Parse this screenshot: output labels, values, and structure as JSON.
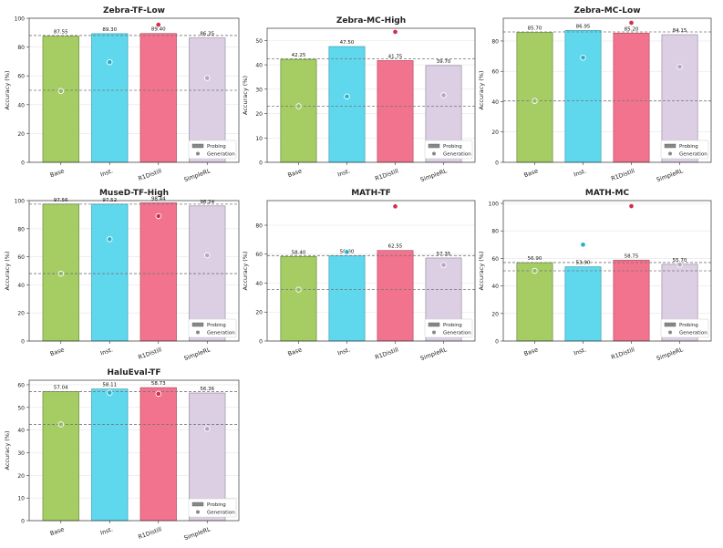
{
  "chart_data": [
    {
      "type": "bar",
      "title": "Zebra-TF-Low",
      "ylabel": "Accuracy (%)",
      "categories": [
        "Base",
        "Inst.",
        "R1Distill",
        "SimpleRL"
      ],
      "ylim": [
        0,
        100
      ],
      "yticks": [
        0,
        20,
        40,
        60,
        80,
        100
      ],
      "series": [
        {
          "name": "Probing",
          "values": [
            87.55,
            89.3,
            89.4,
            86.35
          ]
        },
        {
          "name": "Generation",
          "values": [
            49.5,
            69.5,
            95.5,
            58.5
          ]
        }
      ],
      "bar_labels": [
        "87.55",
        "89.30",
        "89.40",
        "86.35"
      ],
      "hlines": [
        88,
        50
      ],
      "legend": "lower-right"
    },
    {
      "type": "bar",
      "title": "Zebra-MC-High",
      "ylabel": "Accuracy (%)",
      "categories": [
        "Base",
        "Inst.",
        "R1Distill",
        "SimpleRL"
      ],
      "ylim": [
        0,
        55
      ],
      "yticks": [
        0,
        10,
        20,
        30,
        40,
        50
      ],
      "series": [
        {
          "name": "Probing",
          "values": [
            42.25,
            47.5,
            41.75,
            39.7
          ]
        },
        {
          "name": "Generation",
          "values": [
            23,
            27,
            53.5,
            27.5
          ]
        }
      ],
      "bar_labels": [
        "42.25",
        "47.50",
        "41.75",
        "39.70"
      ],
      "hlines": [
        42.5,
        23
      ],
      "legend": "lower-right"
    },
    {
      "type": "bar",
      "title": "Zebra-MC-Low",
      "ylabel": "Accuracy (%)",
      "categories": [
        "Base",
        "Inst.",
        "R1Distill",
        "SimpleRL"
      ],
      "ylim": [
        0,
        95
      ],
      "yticks": [
        0,
        20,
        40,
        60,
        80
      ],
      "series": [
        {
          "name": "Probing",
          "values": [
            85.7,
            86.95,
            85.2,
            84.15
          ]
        },
        {
          "name": "Generation",
          "values": [
            40.5,
            69,
            92,
            63
          ]
        }
      ],
      "bar_labels": [
        "85.70",
        "86.95",
        "85.20",
        "84.15"
      ],
      "hlines": [
        86,
        40.5
      ],
      "legend": "lower-right"
    },
    {
      "type": "bar",
      "title": "MuseD-TF-High",
      "ylabel": "Accuracy (%)",
      "categories": [
        "Base",
        "Inst.",
        "R1Distill",
        "SimpleRL"
      ],
      "ylim": [
        0,
        100
      ],
      "yticks": [
        0,
        20,
        40,
        60,
        80,
        100
      ],
      "series": [
        {
          "name": "Probing",
          "values": [
            97.56,
            97.52,
            98.44,
            96.24
          ]
        },
        {
          "name": "Generation",
          "values": [
            48,
            72.5,
            89,
            61
          ]
        }
      ],
      "bar_labels": [
        "97.56",
        "97.52",
        "98.44",
        "96.24"
      ],
      "hlines": [
        97.5,
        48
      ],
      "legend": "lower-right"
    },
    {
      "type": "bar",
      "title": "MATH-TF",
      "ylabel": "Accuracy (%)",
      "categories": [
        "Base",
        "Inst.",
        "R1Distill",
        "SimpleRL"
      ],
      "ylim": [
        0,
        97
      ],
      "yticks": [
        0,
        20,
        40,
        60,
        80
      ],
      "series": [
        {
          "name": "Probing",
          "values": [
            58.4,
            58.8,
            62.55,
            57.35
          ]
        },
        {
          "name": "Generation",
          "values": [
            35.5,
            61.5,
            93,
            52.5
          ]
        }
      ],
      "bar_labels": [
        "58.40",
        "58.80",
        "62.55",
        "57.35"
      ],
      "hlines": [
        59,
        35.5
      ],
      "legend": "lower-right"
    },
    {
      "type": "bar",
      "title": "MATH-MC",
      "ylabel": "Accuracy (%)",
      "categories": [
        "Base",
        "Inst.",
        "R1Distill",
        "SimpleRL"
      ],
      "ylim": [
        0,
        102
      ],
      "yticks": [
        0,
        20,
        40,
        60,
        80,
        100
      ],
      "series": [
        {
          "name": "Probing",
          "values": [
            56.9,
            53.9,
            58.75,
            55.7
          ]
        },
        {
          "name": "Generation",
          "values": [
            51,
            70,
            98,
            55.5
          ]
        }
      ],
      "bar_labels": [
        "56.90",
        "53.90",
        "58.75",
        "55.70"
      ],
      "hlines": [
        57,
        51
      ],
      "legend": "lower-right"
    },
    {
      "type": "bar",
      "title": "HaluEval-TF",
      "ylabel": "Accuracy (%)",
      "categories": [
        "Base",
        "Inst.",
        "R1Distill",
        "SimpleRL"
      ],
      "ylim": [
        0,
        62
      ],
      "yticks": [
        0,
        10,
        20,
        30,
        40,
        50,
        60
      ],
      "series": [
        {
          "name": "Probing",
          "values": [
            57.04,
            58.11,
            58.73,
            56.36
          ]
        },
        {
          "name": "Generation",
          "values": [
            42.5,
            56.5,
            56,
            40.5
          ]
        }
      ],
      "bar_labels": [
        "57.04",
        "58.11",
        "58.73",
        "56.36"
      ],
      "hlines": [
        57,
        42.5
      ],
      "legend": "lower-right"
    }
  ],
  "colors": {
    "bars": [
      "#a5cd63",
      "#5fd8ee",
      "#f2738d",
      "#dccfe3"
    ],
    "bar_edges": [
      "#6a8a3a",
      "#3a9fb5",
      "#b84f65",
      "#9d90a6"
    ],
    "dots": [
      "#98b86e",
      "#2ab0c8",
      "#cf2f4f",
      "#b6a6c3"
    ],
    "grid": "#e6e6e6",
    "hline": "#777777"
  }
}
